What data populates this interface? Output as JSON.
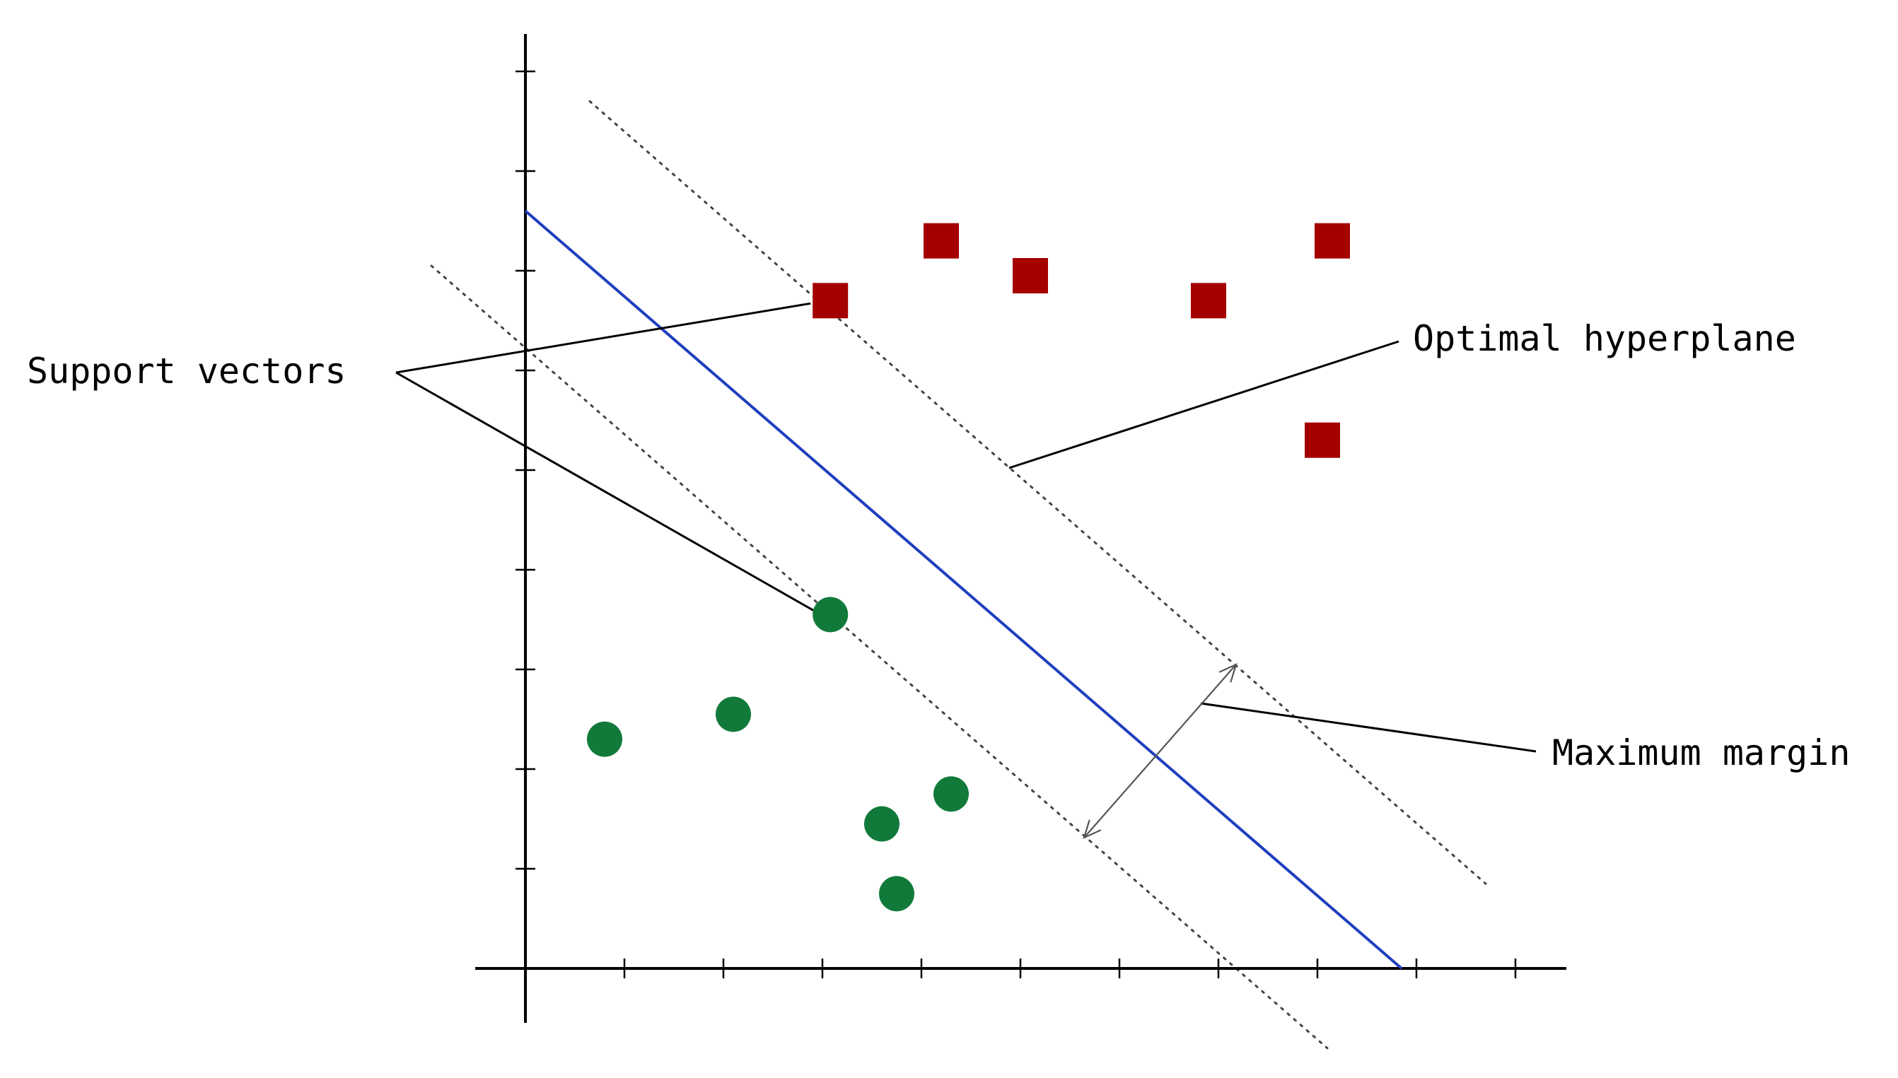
{
  "labels": {
    "support_vectors": "Support vectors",
    "optimal_hyperplane": "Optimal hyperplane",
    "maximum_margin": "Maximum margin"
  },
  "colors": {
    "hyperplane": "#1f3fbf",
    "class_square": "#a40000",
    "class_circle": "#117a3a",
    "margin_lines": "#444444",
    "axes": "#000000"
  },
  "chart_data": {
    "type": "scatter",
    "axis_ticks": {
      "x_count": 10,
      "y_count": 9,
      "tick_labels": "none"
    },
    "series": [
      {
        "marker": "square",
        "color": "#a40000",
        "points": [
          [
            3.08,
            6.7
          ],
          [
            4.2,
            7.3
          ],
          [
            5.1,
            6.95
          ],
          [
            6.9,
            6.7
          ],
          [
            8.15,
            7.3
          ],
          [
            8.05,
            5.3
          ]
        ]
      },
      {
        "marker": "circle",
        "color": "#117a3a",
        "points": [
          [
            3.08,
            3.55
          ],
          [
            0.8,
            2.3
          ],
          [
            2.1,
            2.55
          ],
          [
            3.6,
            1.45
          ],
          [
            4.3,
            1.75
          ],
          [
            3.75,
            0.75
          ]
        ]
      }
    ],
    "hyperplane": [
      [
        0,
        7.6
      ],
      [
        8.85,
        0
      ]
    ],
    "margin_upper": [
      [
        0.65,
        8.7
      ],
      [
        9.7,
        0.85
      ]
    ],
    "margin_lower": [
      [
        -0.95,
        7.05
      ],
      [
        8.1,
        -0.8
      ]
    ]
  }
}
